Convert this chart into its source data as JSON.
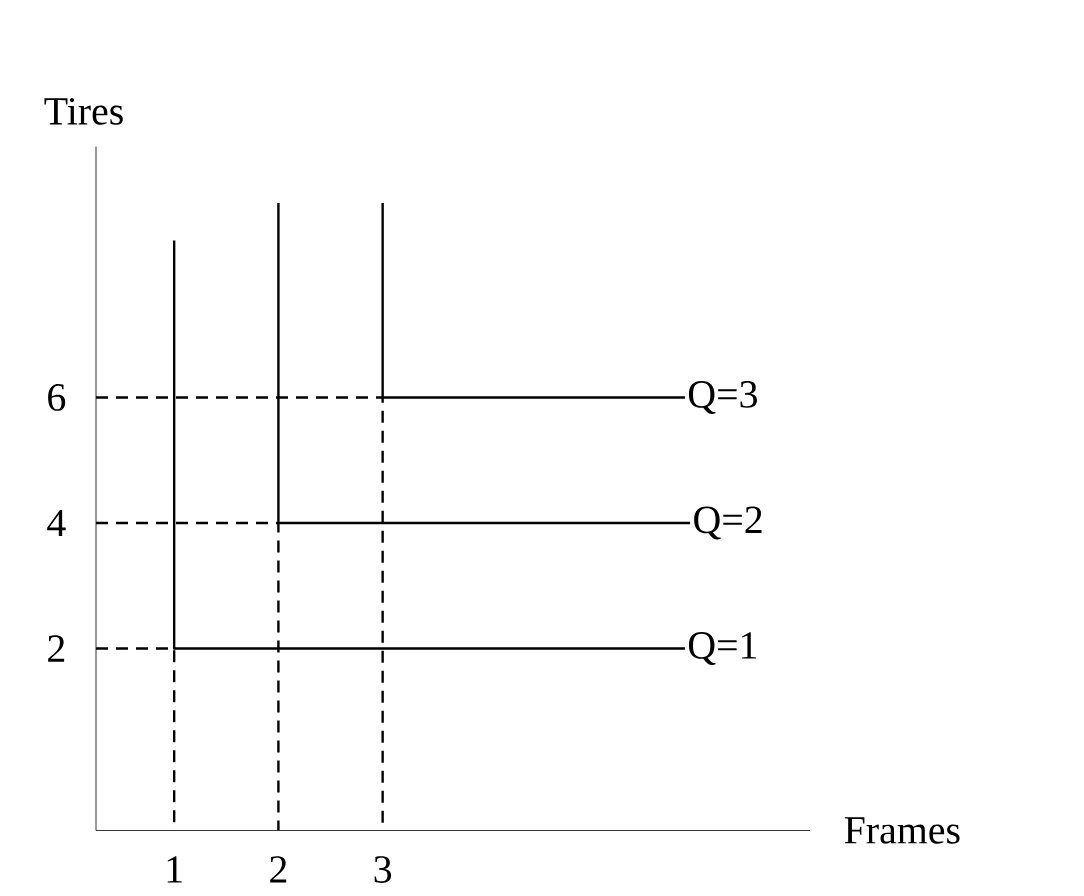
{
  "chart_data": {
    "type": "line",
    "xlabel": "Frames",
    "ylabel": "Tires",
    "xlim": [
      0.25,
      7.1
    ],
    "ylim": [
      -0.9,
      10
    ],
    "xticks": [
      1,
      2,
      3
    ],
    "yticks": [
      2,
      4,
      6
    ],
    "grid": false,
    "marker": "none",
    "series": [
      {
        "name": "Q=1",
        "color": "#000000",
        "line_style": "solid",
        "x": [
          1,
          1,
          5.9
        ],
        "values": [
          8.5,
          2,
          2
        ]
      },
      {
        "name": "Q=2",
        "color": "#000000",
        "line_style": "solid",
        "x": [
          2,
          2,
          5.95
        ],
        "values": [
          9.1,
          4,
          4
        ]
      },
      {
        "name": "Q=3",
        "color": "#000000",
        "line_style": "solid",
        "x": [
          3,
          3,
          5.9
        ],
        "values": [
          9.1,
          6,
          6
        ]
      },
      {
        "color": "#000000",
        "line_style": "dashed",
        "x": [
          0.25,
          1,
          1
        ],
        "values": [
          2,
          2,
          -0.9
        ]
      },
      {
        "color": "#000000",
        "line_style": "dashed",
        "x": [
          0.25,
          2,
          2
        ],
        "values": [
          4,
          4,
          -0.9
        ]
      },
      {
        "color": "#000000",
        "line_style": "dashed",
        "x": [
          0.25,
          3,
          3
        ],
        "values": [
          6,
          6,
          -0.9
        ]
      }
    ]
  }
}
